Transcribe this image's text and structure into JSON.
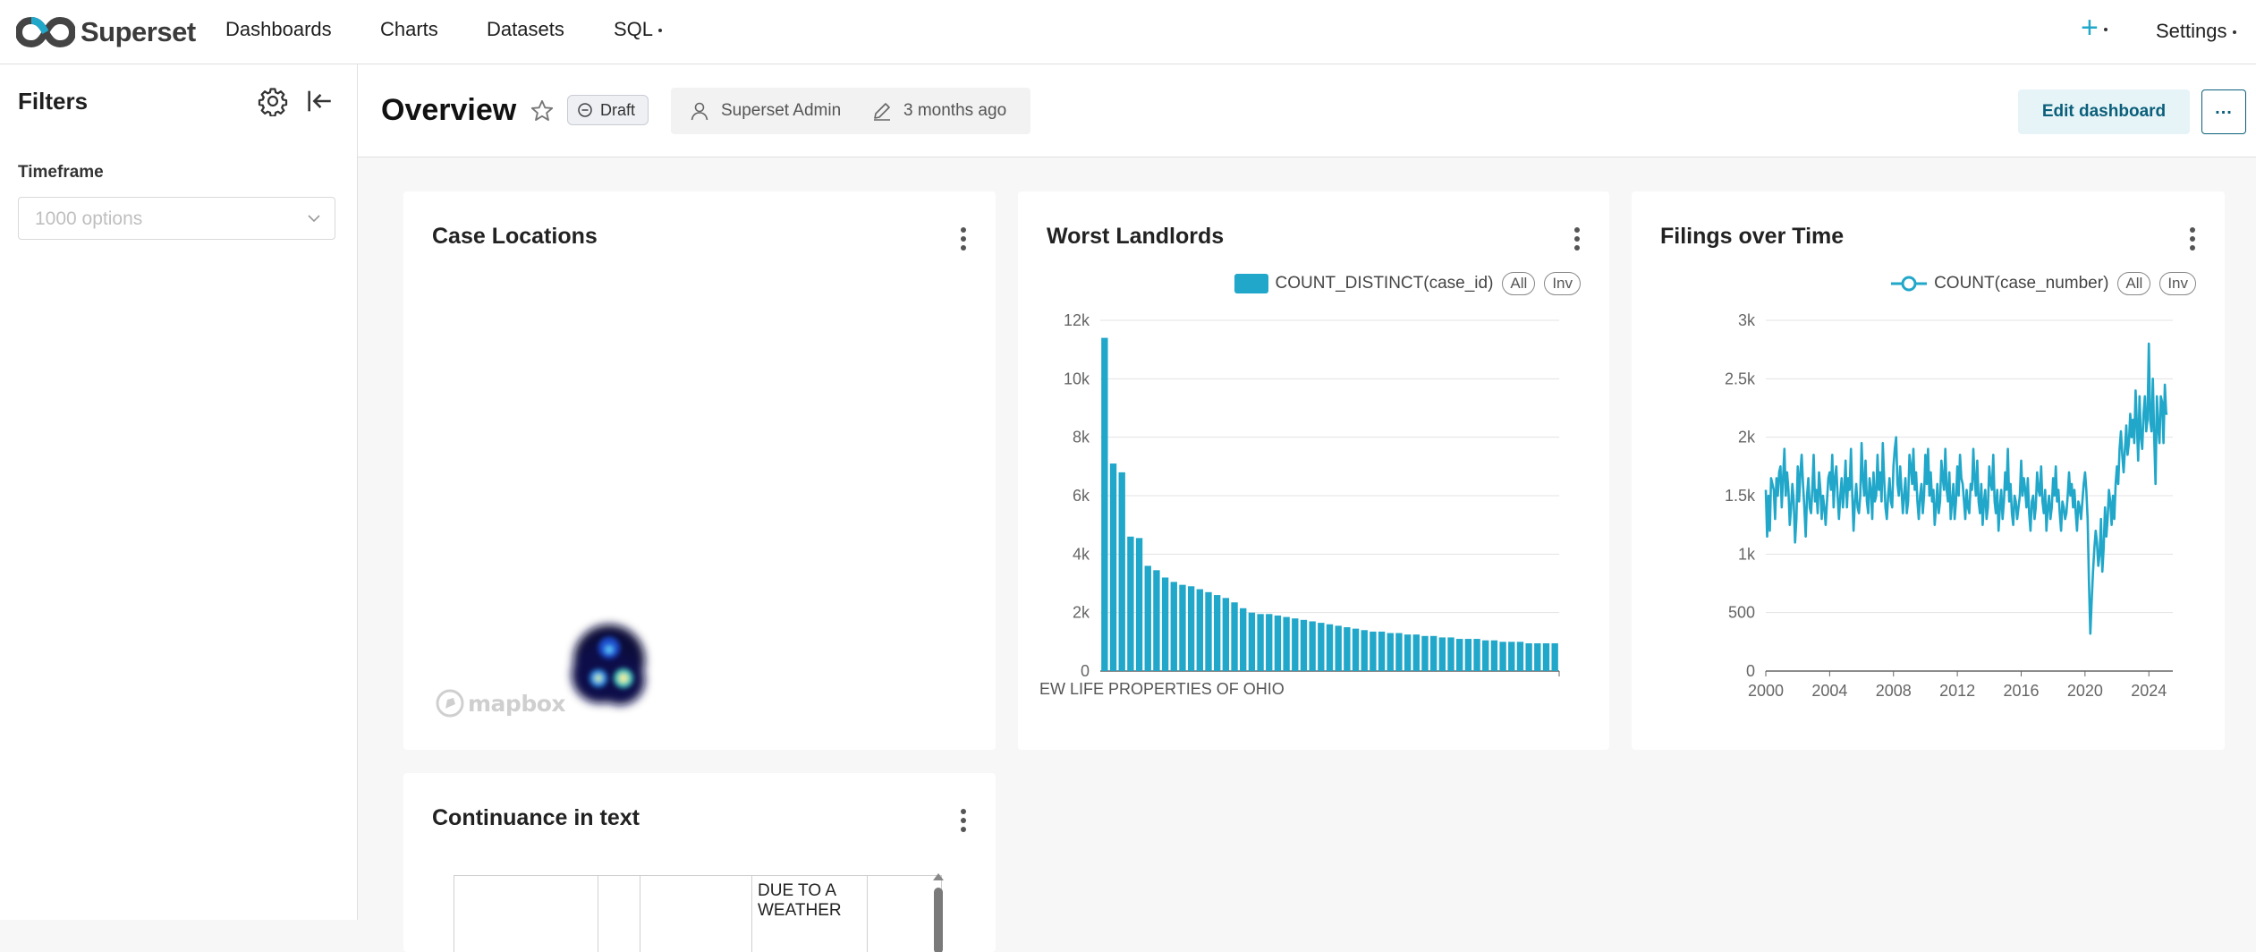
{
  "app": {
    "name": "Superset"
  },
  "nav": {
    "items": [
      "Dashboards",
      "Charts",
      "Datasets",
      "SQL"
    ],
    "plus_label": "+",
    "settings_label": "Settings"
  },
  "filters": {
    "title": "Filters",
    "timeframe_label": "Timeframe",
    "timeframe_placeholder": "1000 options"
  },
  "dashboard": {
    "title": "Overview",
    "status": "Draft",
    "owner": "Superset Admin",
    "modified": "3 months ago",
    "edit_button": "Edit dashboard",
    "more_button": "..."
  },
  "cards": {
    "map": {
      "title": "Case Locations",
      "attribution": "mapbox"
    },
    "landlords": {
      "title": "Worst Landlords"
    },
    "filings": {
      "title": "Filings over Time"
    },
    "table": {
      "title": "Continuance in text",
      "visible_cells": [
        "DUE TO A WEATHER"
      ]
    }
  },
  "colors": {
    "accent": "#20a7c9",
    "bar": "#20a7c9",
    "primary_dark": "#0b5f7a"
  },
  "chart_data": [
    {
      "type": "bar",
      "title": "Worst Landlords",
      "legend": [
        "COUNT_DISTINCT(case_id)"
      ],
      "legend_controls": [
        "All",
        "Inv"
      ],
      "legend_position": "top-right",
      "visible_category_label": "EW LIFE PROPERTIES OF OHIO",
      "ylim": [
        0,
        12000
      ],
      "y_ticks": [
        "0",
        "2k",
        "4k",
        "6k",
        "8k",
        "10k",
        "12k"
      ],
      "series": [
        {
          "name": "COUNT_DISTINCT(case_id)",
          "values": [
            11400,
            7100,
            6800,
            4600,
            4550,
            3600,
            3450,
            3200,
            3050,
            2950,
            2900,
            2800,
            2700,
            2600,
            2500,
            2350,
            2150,
            2000,
            1950,
            1950,
            1900,
            1850,
            1800,
            1750,
            1700,
            1650,
            1600,
            1550,
            1500,
            1450,
            1400,
            1350,
            1350,
            1300,
            1300,
            1250,
            1250,
            1200,
            1200,
            1150,
            1150,
            1100,
            1100,
            1100,
            1050,
            1050,
            1000,
            1000,
            1000,
            950,
            950,
            950,
            950
          ]
        }
      ],
      "grid": true
    },
    {
      "type": "line",
      "title": "Filings over Time",
      "legend": [
        "COUNT(case_number)"
      ],
      "legend_controls": [
        "All",
        "Inv"
      ],
      "legend_position": "top-right",
      "xlim": [
        2000,
        2025.5
      ],
      "x_ticks": [
        2000,
        2004,
        2008,
        2012,
        2016,
        2020,
        2024
      ],
      "ylim": [
        0,
        3000
      ],
      "y_ticks": [
        "0",
        "500",
        "1k",
        "1.5k",
        "2k",
        "2.5k",
        "3k"
      ],
      "series": [
        {
          "name": "COUNT(case_number)",
          "values_by_year": {
            "2000": [
              1550,
              1150,
              1500,
              1200,
              1650,
              1600,
              1550,
              1300,
              1650,
              1500,
              1700,
              1750
            ],
            "2001": [
              1400,
              1650,
              1900,
              1500,
              1700,
              1550,
              1250,
              1400,
              1600,
              1450,
              1100,
              1300
            ],
            "2002": [
              1750,
              1450,
              1700,
              1850,
              1600,
              1400,
              1150,
              1500,
              1650,
              1400,
              1350,
              1550
            ],
            "2003": [
              1850,
              1450,
              1550,
              1350,
              1700,
              1550,
              1300,
              1500,
              1400,
              1250,
              1450,
              1650
            ],
            "2004": [
              1700,
              1550,
              1850,
              1400,
              1650,
              1750,
              1500,
              1300,
              1500,
              1650,
              1400,
              1550
            ],
            "2005": [
              1800,
              1400,
              1650,
              1550,
              1900,
              1500,
              1200,
              1450,
              1600,
              1400,
              1350,
              1500
            ],
            "2006": [
              1950,
              1650,
              1500,
              1800,
              1450,
              1350,
              1650,
              1550,
              1300,
              1700,
              1450,
              1500
            ],
            "2007": [
              1850,
              1550,
              1700,
              1450,
              1950,
              1650,
              1400,
              1300,
              1500,
              1650,
              1450,
              1400
            ],
            "2008": [
              1750,
              1900,
              2000,
              1600,
              1500,
              1750,
              1550,
              1350,
              1500,
              1650,
              1350,
              1450
            ],
            "2009": [
              1850,
              1750,
              1600,
              1900,
              1550,
              1700,
              1450,
              1300,
              1500,
              1600,
              1350,
              1500
            ],
            "2010": [
              1850,
              1600,
              1900,
              1500,
              1700,
              1450,
              1550,
              1250,
              1400,
              1600,
              1350,
              1450
            ],
            "2011": [
              1800,
              1650,
              1550,
              1900,
              1550,
              1450,
              1700,
              1300,
              1450,
              1600,
              1300,
              1450
            ],
            "2012": [
              1750,
              1500,
              1850,
              1650,
              1600,
              1450,
              1300,
              1550,
              1400,
              1350,
              1600,
              1550
            ],
            "2013": [
              1900,
              1650,
              1500,
              1800,
              1450,
              1350,
              1600,
              1250,
              1450,
              1550,
              1300,
              1400
            ],
            "2014": [
              1750,
              1600,
              1550,
              1850,
              1450,
              1350,
              1550,
              1200,
              1400,
              1550,
              1300,
              1450
            ],
            "2015": [
              1700,
              1550,
              1900,
              1450,
              1600,
              1350,
              1250,
              1500,
              1450,
              1300,
              1400,
              1500
            ],
            "2016": [
              1800,
              1500,
              1650,
              1550,
              1400,
              1650,
              1350,
              1200,
              1450,
              1500,
              1300,
              1400
            ],
            "2017": [
              1700,
              1550,
              1500,
              1750,
              1450,
              1350,
              1550,
              1200,
              1400,
              1500,
              1300,
              1400
            ],
            "2018": [
              1650,
              1500,
              1750,
              1450,
              1550,
              1350,
              1200,
              1450,
              1400,
              1300,
              1350,
              1500
            ],
            "2019": [
              1700,
              1500,
              1600,
              1400,
              1550,
              1350,
              1200,
              1450,
              1400,
              1300,
              1450,
              1600
            ],
            "2020": [
              1700,
              1550,
              1300,
              750,
              320,
              600,
              850,
              1050,
              1200,
              1100,
              900,
              1000
            ],
            "2021": [
              1300,
              850,
              1050,
              1400,
              1150,
              1300,
              1550,
              1450,
              1250,
              1500,
              1300,
              1600
            ],
            "2022": [
              1750,
              1600,
              1900,
              2050,
              1850,
              1700,
              1900,
              2100,
              1850,
              1950,
              2200,
              2000
            ],
            "2023": [
              2150,
              1950,
              2400,
              2100,
              1800,
              2350,
              2000,
              1900,
              2200,
              2350,
              2050,
              2150
            ],
            "2024": [
              2800,
              2150,
              2050,
              2500,
              2000,
              1600,
              2350,
              2100,
              1950,
              2350,
              2300,
              1950
            ],
            "2025": [
              2450,
              2200,
              2200
            ]
          }
        }
      ],
      "grid": true
    }
  ]
}
